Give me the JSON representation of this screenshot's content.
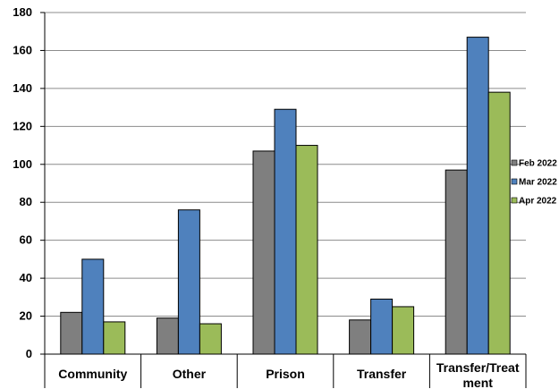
{
  "chart_data": {
    "type": "bar",
    "title": "",
    "xlabel": "",
    "ylabel": "",
    "ylim": [
      0,
      180
    ],
    "yticks": [
      0,
      20,
      40,
      60,
      80,
      100,
      120,
      140,
      160,
      180
    ],
    "grid": true,
    "legend_position": "right",
    "categories": [
      "Community",
      "Other",
      "Prison",
      "Transfer",
      "Transfer/Treatment"
    ],
    "category_lines": [
      [
        "Community"
      ],
      [
        "Other"
      ],
      [
        "Prison"
      ],
      [
        "Transfer"
      ],
      [
        "Transfer/Treat",
        "ment"
      ]
    ],
    "series": [
      {
        "name": "Feb 2022",
        "color": "#7f7f7f",
        "values": [
          22,
          19,
          107,
          18,
          97
        ]
      },
      {
        "name": "Mar 2022",
        "color": "#4f81bd",
        "values": [
          50,
          76,
          129,
          29,
          167
        ]
      },
      {
        "name": "Apr 2022",
        "color": "#9bbb59",
        "values": [
          17,
          16,
          110,
          25,
          138
        ]
      }
    ]
  }
}
